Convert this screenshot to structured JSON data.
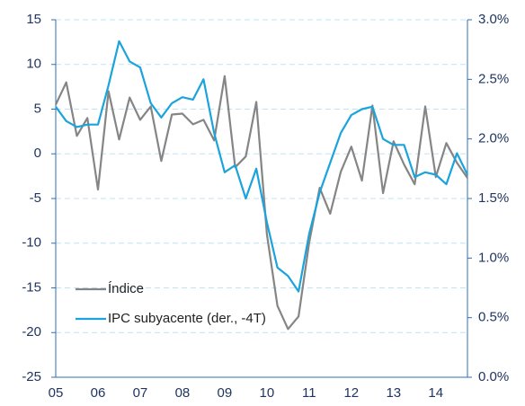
{
  "chart_data": {
    "type": "line",
    "categories": [
      "05",
      null,
      null,
      null,
      "06",
      null,
      null,
      null,
      "07",
      null,
      null,
      null,
      "08",
      null,
      null,
      null,
      "09",
      null,
      null,
      null,
      "10",
      null,
      null,
      null,
      "11",
      null,
      null,
      null,
      "12",
      null,
      null,
      null,
      "13",
      null,
      null,
      null,
      "14",
      null,
      null,
      null
    ],
    "series": [
      {
        "name": "Índice",
        "color": "#858585",
        "values": [
          5.5,
          8,
          2,
          4,
          -4,
          7,
          1.6,
          6.3,
          3.8,
          5.3,
          -0.8,
          4.4,
          4.5,
          3.3,
          3.8,
          1.5,
          8.7,
          -1.5,
          -0.3,
          5.8,
          -9,
          -17,
          -19.6,
          -18.2,
          -10,
          -3.8,
          -6.7,
          -2,
          0.8,
          -3,
          5.4,
          -4.4,
          1.4,
          -1.2,
          -3.4,
          5.3,
          -2.6,
          1.2,
          -1,
          -2.7
        ]
      },
      {
        "name": "IPC subyacente (der., -4T)",
        "color": "#1aa3dc",
        "axis": "y2",
        "values": [
          2.27,
          2.15,
          2.1,
          2.12,
          2.12,
          2.45,
          2.82,
          2.65,
          2.6,
          2.3,
          2.18,
          2.3,
          2.35,
          2.33,
          2.5,
          2.05,
          1.72,
          1.78,
          1.5,
          1.75,
          1.3,
          0.92,
          0.85,
          0.72,
          1.2,
          1.55,
          1.8,
          2.05,
          2.2,
          2.25,
          2.27,
          2.0,
          1.95,
          1.95,
          1.68,
          1.72,
          1.7,
          1.62,
          1.88,
          1.7
        ]
      }
    ],
    "ylim": [
      -25,
      15
    ],
    "yticks": [
      -25,
      -20,
      -15,
      -10,
      -5,
      0,
      5,
      10,
      15
    ],
    "y2lim": [
      0,
      3
    ],
    "y2ticks": [
      {
        "value": 0,
        "label": "0.0%"
      },
      {
        "value": 0.5,
        "label": "0.5%"
      },
      {
        "value": 1,
        "label": "1.0%"
      },
      {
        "value": 1.5,
        "label": "1.5%"
      },
      {
        "value": 2,
        "label": "2.0%"
      },
      {
        "value": 2.5,
        "label": "2.5%"
      },
      {
        "value": 3,
        "label": "3.0%"
      }
    ],
    "grid": true,
    "legend": "lower left"
  }
}
